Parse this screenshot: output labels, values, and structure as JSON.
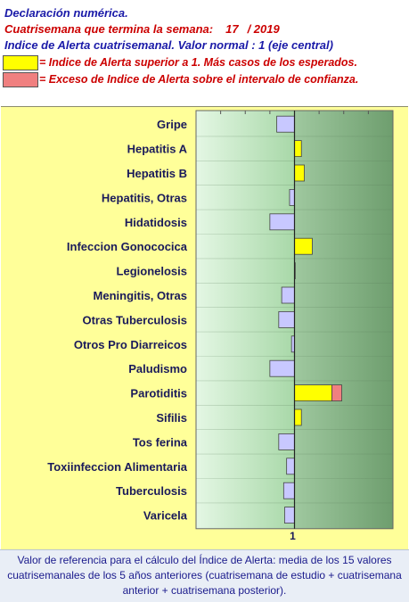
{
  "header": {
    "line1": "Declaración numérica.",
    "week_label": "Cuatrisemana que termina la semana:",
    "week": "17",
    "year": "/ 2019",
    "line3": "Indice de Alerta cuatrisemanal. Valor normal : 1 (eje central)"
  },
  "legend": [
    {
      "label": "= Indice de Alerta superior a 1. Más casos de los esperados.",
      "color": "#ffff00"
    },
    {
      "label": "= Exceso de Indice de Alerta sobre el intervalo de confianza.",
      "color": "#f08080"
    }
  ],
  "chart_data": {
    "type": "bar",
    "orientation": "horizontal",
    "baseline": 1,
    "xlim": [
      0,
      2
    ],
    "x_tick_label": "1",
    "categories": [
      "Gripe",
      "Hepatitis A",
      "Hepatitis B",
      "Hepatitis, Otras",
      "Hidatidosis",
      "Infeccion Gonococica",
      "Legionelosis",
      "Meningitis, Otras",
      "Otras Tuberculosis",
      "Otros Pro Diarreicos",
      "Paludismo",
      "Parotiditis",
      "Sifilis",
      "Tos ferina",
      "Toxiinfeccion Alimentaria",
      "Tuberculosis",
      "Varicela"
    ],
    "values": [
      0.82,
      1.07,
      1.1,
      0.95,
      0.75,
      1.18,
      1.0,
      0.87,
      0.84,
      0.97,
      0.75,
      1.38,
      1.07,
      0.84,
      0.92,
      0.89,
      0.9
    ],
    "excess": [
      0,
      0,
      0,
      0,
      0,
      0,
      0,
      0,
      0,
      0,
      0,
      0.1,
      0,
      0,
      0,
      0,
      0
    ],
    "colors": {
      "below": "#c8c8ff",
      "above": "#ffff00",
      "excess": "#f08080",
      "left_bg": [
        "#e4f7e4",
        "#a8d8a8"
      ],
      "right_bg": [
        "#9fc89f",
        "#6e9e6e"
      ]
    }
  },
  "footer": {
    "text": "Valor de referencia para el cálculo del Índice de Alerta: media de los 15 valores cuatrisemanales de los 5 años anteriores (cuatrisemana de estudio + cuatrisemana anterior + cuatrisemana posterior)."
  }
}
